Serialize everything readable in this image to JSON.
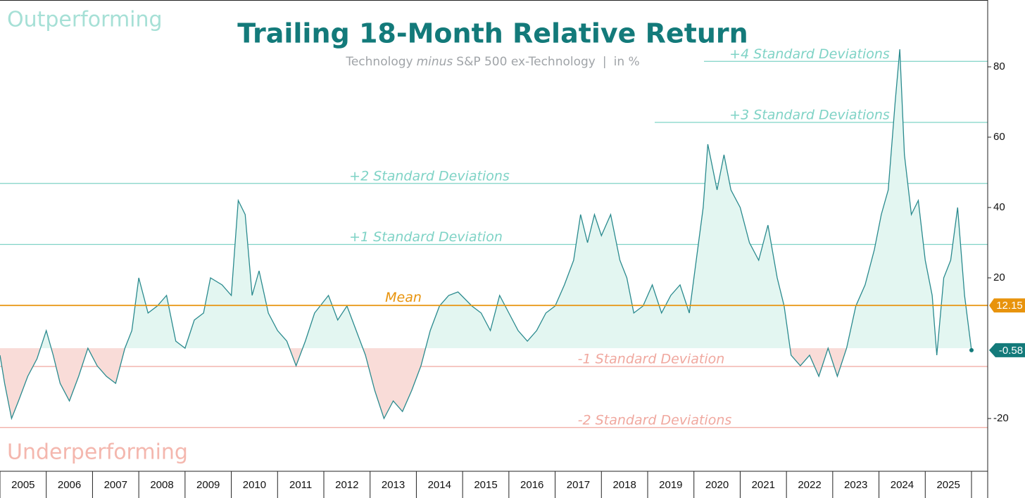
{
  "chart_data": {
    "type": "line",
    "title": "Trailing 18-Month Relative Return",
    "subtitle_parts": [
      "Technology",
      "minus",
      "S&P 500 ex-Technology",
      "|",
      "in %"
    ],
    "top_label": "Outperforming",
    "bottom_label": "Underperforming",
    "year_labels": [
      "2005",
      "2006",
      "2007",
      "2008",
      "2009",
      "2010",
      "2011",
      "2012",
      "2013",
      "2014",
      "2015",
      "2016",
      "2017",
      "2018",
      "2019",
      "2020",
      "2021",
      "2022",
      "2023",
      "2024",
      "2025"
    ],
    "xlim": [
      2005,
      2026.35
    ],
    "ylim": [
      -35,
      99
    ],
    "yticks": [
      -20,
      20,
      40,
      60,
      80
    ],
    "mean": {
      "label": "Mean",
      "value": 12.15,
      "color": "#e8930c"
    },
    "reference_lines": [
      {
        "label": "+4 Standard Deviations",
        "value": 81.55,
        "color": "#7fd3c6"
      },
      {
        "label": "+3 Standard Deviations",
        "value": 64.2,
        "color": "#7fd3c6"
      },
      {
        "label": "+2 Standard Deviations",
        "value": 46.85,
        "color": "#7fd3c6"
      },
      {
        "label": "+1 Standard Deviation",
        "value": 29.5,
        "color": "#7fd3c6"
      },
      {
        "label": "-1 Standard Deviation",
        "value": -5.2,
        "color": "#f0a89f"
      },
      {
        "label": "-2 Standard Deviations",
        "value": -22.55,
        "color": "#f0a89f"
      }
    ],
    "series": [
      {
        "name": "Technology minus S&P 500 ex-Technology",
        "color": "#2a8a8e",
        "fill_above": "#e3f6f1",
        "fill_below": "#f9dcd8",
        "x": [
          2005.0,
          2005.1,
          2005.25,
          2005.4,
          2005.6,
          2005.8,
          2006.0,
          2006.15,
          2006.3,
          2006.5,
          2006.7,
          2006.9,
          2007.1,
          2007.3,
          2007.5,
          2007.7,
          2007.85,
          2008.0,
          2008.2,
          2008.4,
          2008.6,
          2008.8,
          2009.0,
          2009.2,
          2009.4,
          2009.55,
          2009.8,
          2010.0,
          2010.15,
          2010.3,
          2010.45,
          2010.6,
          2010.8,
          2011.0,
          2011.2,
          2011.4,
          2011.6,
          2011.8,
          2012.1,
          2012.3,
          2012.5,
          2012.7,
          2012.9,
          2013.1,
          2013.3,
          2013.5,
          2013.7,
          2013.9,
          2014.1,
          2014.3,
          2014.5,
          2014.7,
          2014.9,
          2015.2,
          2015.4,
          2015.6,
          2015.8,
          2016.0,
          2016.2,
          2016.4,
          2016.6,
          2016.8,
          2017.0,
          2017.2,
          2017.4,
          2017.55,
          2017.7,
          2017.85,
          2018.0,
          2018.2,
          2018.4,
          2018.55,
          2018.7,
          2018.9,
          2019.1,
          2019.3,
          2019.5,
          2019.7,
          2019.9,
          2020.05,
          2020.2,
          2020.3,
          2020.5,
          2020.65,
          2020.8,
          2021.0,
          2021.2,
          2021.4,
          2021.6,
          2021.8,
          2021.95,
          2022.1,
          2022.3,
          2022.5,
          2022.7,
          2022.9,
          2023.1,
          2023.3,
          2023.5,
          2023.7,
          2023.9,
          2024.05,
          2024.2,
          2024.35,
          2024.45,
          2024.55,
          2024.7,
          2024.85,
          2025.0,
          2025.15,
          2025.25,
          2025.4,
          2025.55,
          2025.7,
          2025.85,
          2026.0
        ],
        "values": [
          -2,
          -10,
          -20,
          -15,
          -8,
          -3,
          5,
          -2,
          -10,
          -15,
          -8,
          0,
          -5,
          -8,
          -10,
          0,
          5,
          20,
          10,
          12,
          15,
          2,
          0,
          8,
          10,
          20,
          18,
          15,
          42,
          38,
          15,
          22,
          10,
          5,
          2,
          -5,
          2,
          10,
          15,
          8,
          12,
          5,
          -2,
          -12,
          -20,
          -15,
          -18,
          -12,
          -5,
          5,
          12,
          15,
          16,
          12,
          10,
          5,
          15,
          10,
          5,
          2,
          5,
          10,
          12,
          18,
          25,
          38,
          30,
          38,
          32,
          38,
          25,
          20,
          10,
          12,
          18,
          10,
          15,
          18,
          10,
          25,
          40,
          58,
          45,
          55,
          45,
          40,
          30,
          25,
          35,
          20,
          12,
          -2,
          -5,
          -2,
          -8,
          0,
          -8,
          0,
          12,
          18,
          28,
          38,
          45,
          70,
          85,
          55,
          38,
          42,
          25,
          15,
          -2,
          20,
          25,
          40,
          15,
          -0.58
        ]
      }
    ]
  }
}
